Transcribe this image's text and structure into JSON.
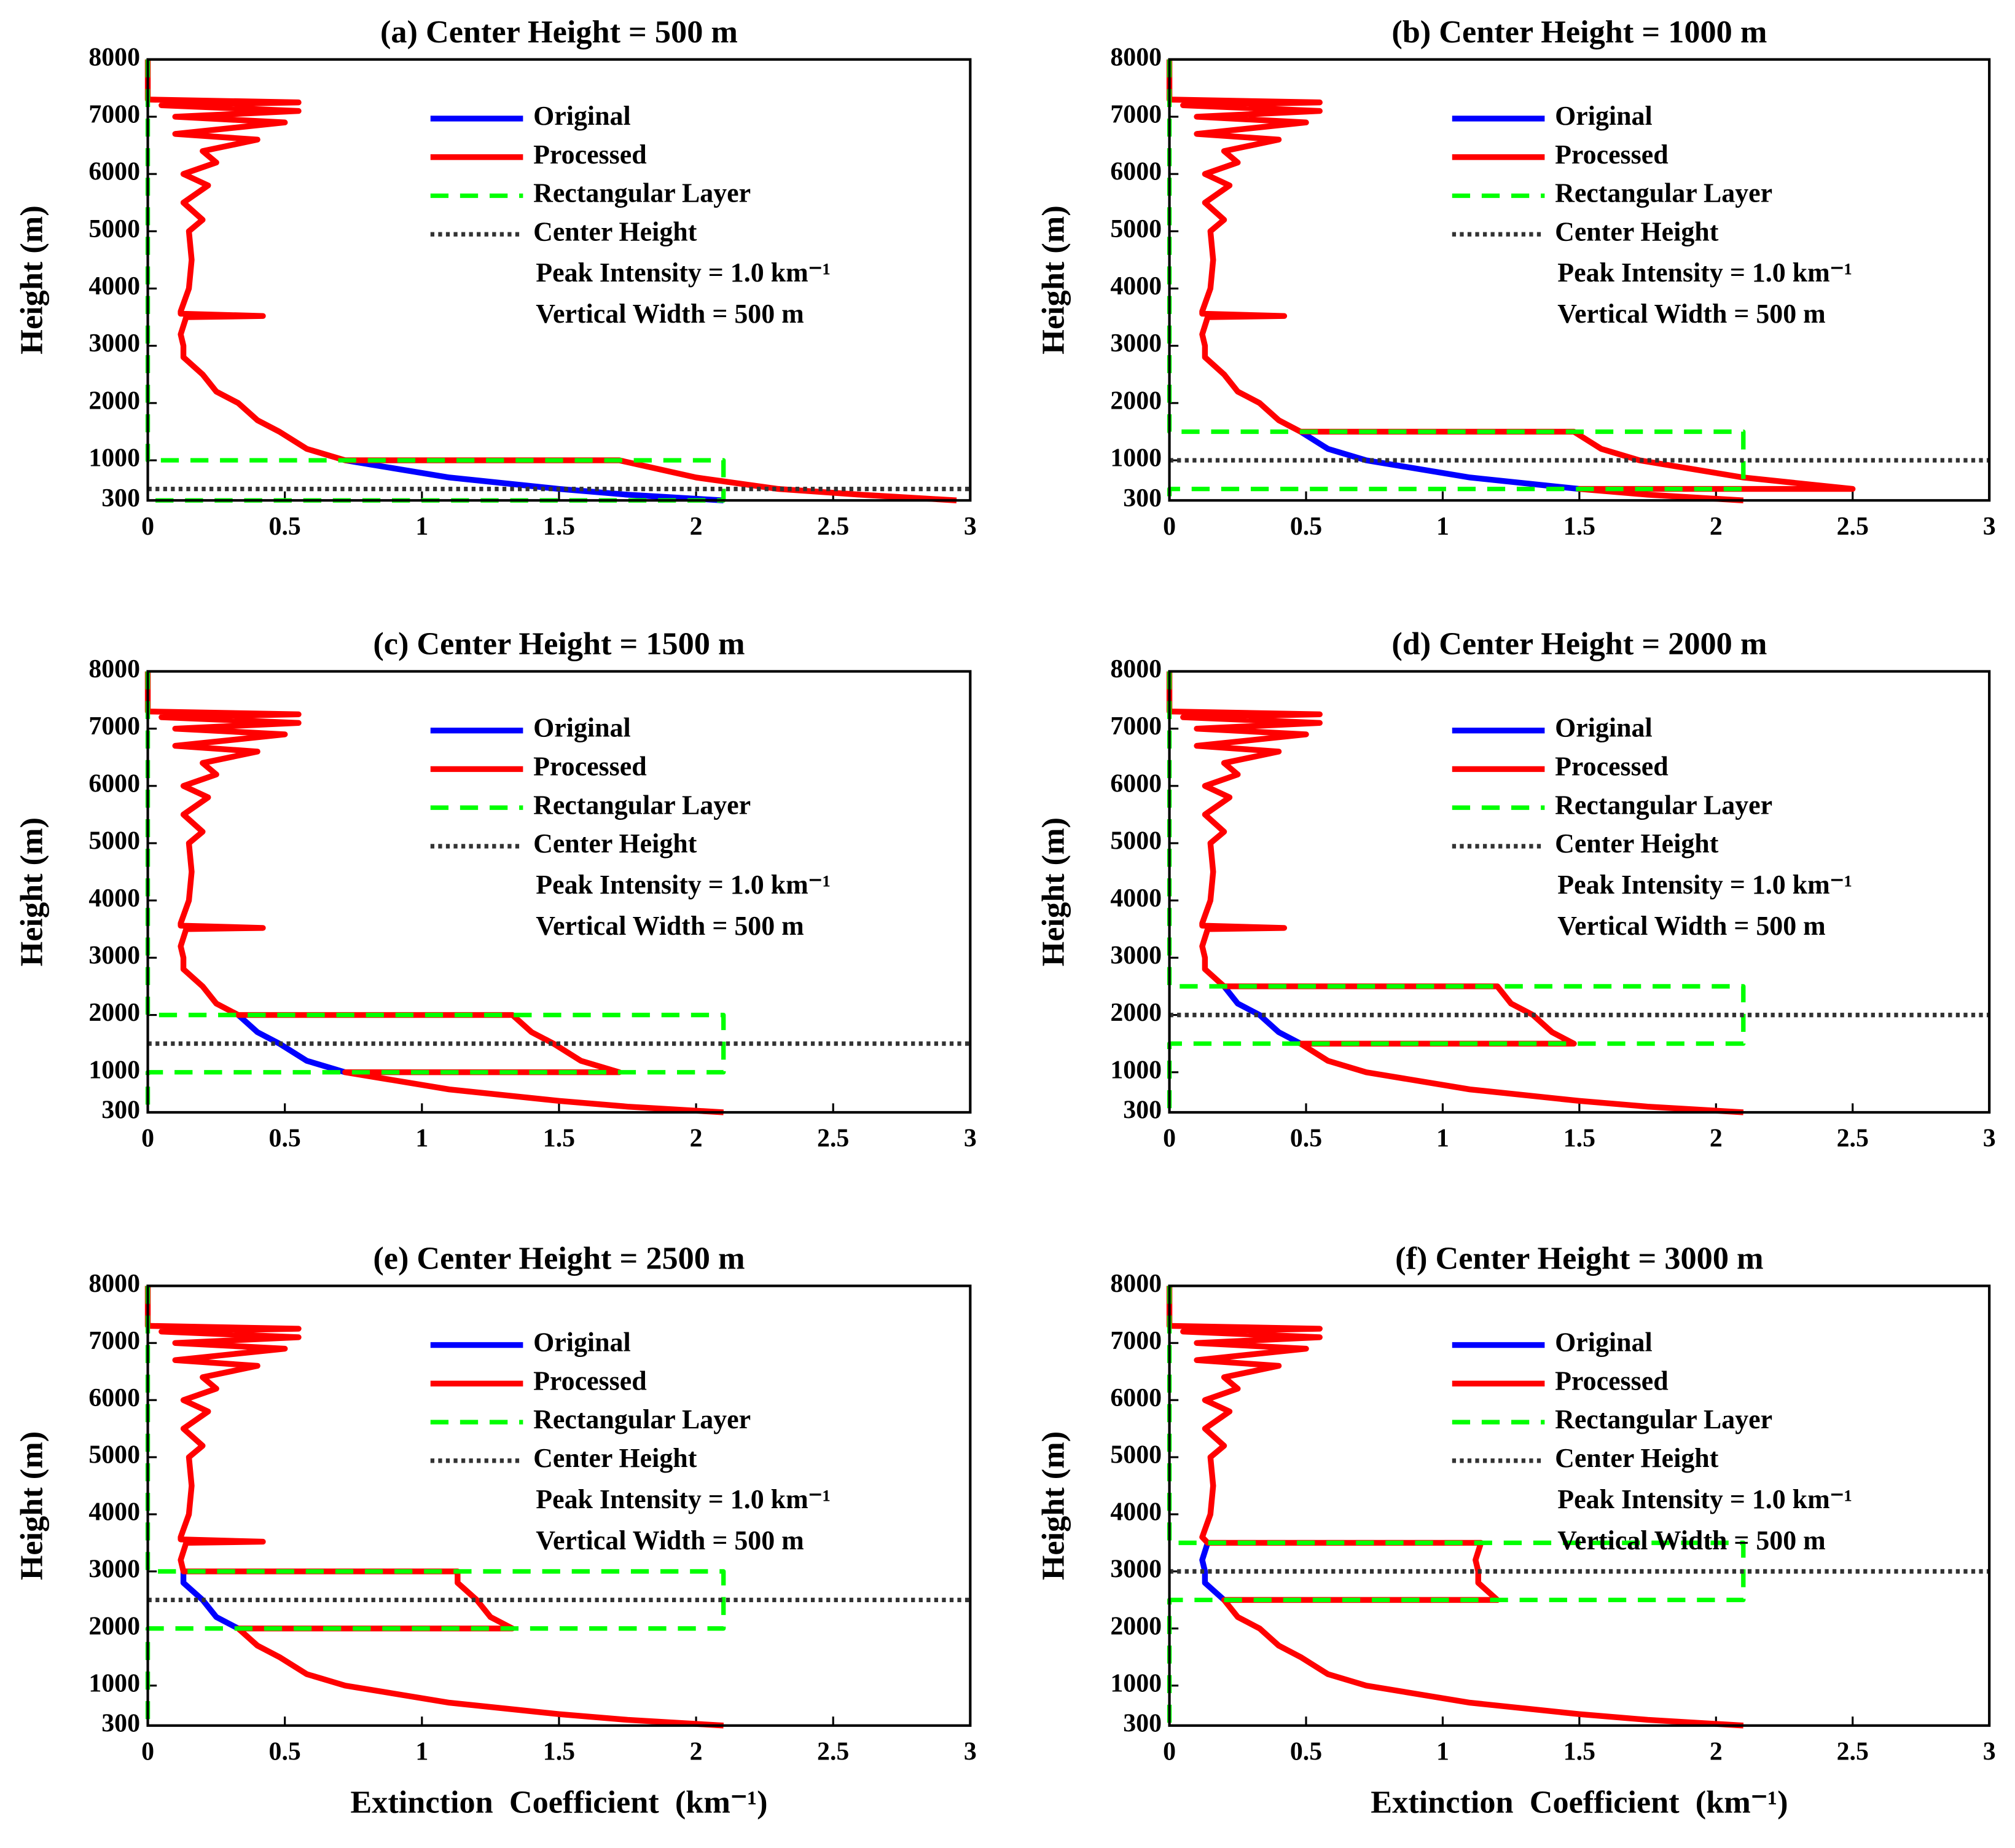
{
  "chart_data": [
    {
      "type": "line",
      "title": "(a) Center Height = 500 m",
      "ylabel": "Height (m)",
      "xlim": [
        0,
        3
      ],
      "ylim": [
        300,
        8000
      ],
      "xticks": [
        0,
        0.5,
        1,
        1.5,
        2,
        2.5,
        3
      ],
      "yticks": [
        300,
        1000,
        2000,
        3000,
        4000,
        5000,
        6000,
        7000,
        8000
      ],
      "legend": "upper right",
      "annotations": [
        "Peak Intensity = 1.0 km⁻¹",
        "Vertical Width = 500 m"
      ],
      "series": [
        {
          "name": "Original",
          "color": "#0000ff",
          "linestyle": "solid",
          "x": [
            2.1,
            1.75,
            1.5,
            1.1,
            0.72
          ],
          "y": [
            300,
            400,
            500,
            700,
            1000
          ]
        },
        {
          "name": "Processed",
          "color": "#ff0000",
          "linestyle": "solid",
          "x": [
            2.95,
            2.6,
            2.3,
            2.0,
            1.72,
            0.72,
            0.58,
            0.48,
            0.4,
            0.33,
            0.25,
            0.2,
            0.13,
            0.13,
            0.12,
            0.14,
            0.42,
            0.12,
            0.12,
            0.15,
            0.16,
            0.15,
            0.2,
            0.13,
            0.22,
            0.13,
            0.25,
            0.2,
            0.4,
            0.1,
            0.5,
            0.1,
            0.55,
            0.05,
            0.55,
            0.0,
            0.0
          ],
          "y": [
            300,
            400,
            500,
            700,
            1000,
            1000,
            1200,
            1500,
            1700,
            2000,
            2200,
            2500,
            2800,
            3000,
            3200,
            3500,
            3520,
            3560,
            3600,
            4000,
            4500,
            5000,
            5200,
            5500,
            5800,
            6000,
            6200,
            6400,
            6600,
            6700,
            6900,
            7000,
            7100,
            7200,
            7250,
            7300,
            8000
          ]
        },
        {
          "name": "Rectangular Layer",
          "color": "#00ff00",
          "linestyle": "dashed",
          "x": [
            0,
            0,
            2.1,
            2.1,
            0
          ],
          "y": [
            8000,
            1000,
            1000,
            300,
            300
          ]
        },
        {
          "name": "Center Height",
          "color": "#333333",
          "linestyle": "dotted",
          "x": [
            0,
            3
          ],
          "y": [
            500,
            500
          ]
        }
      ]
    },
    {
      "type": "line",
      "title": "(b) Center Height = 1000 m",
      "ylabel": "Height (m)",
      "xlim": [
        0,
        3
      ],
      "ylim": [
        300,
        8000
      ],
      "xticks": [
        0,
        0.5,
        1,
        1.5,
        2,
        2.5,
        3
      ],
      "yticks": [
        300,
        1000,
        2000,
        3000,
        4000,
        5000,
        6000,
        7000,
        8000
      ],
      "legend": "upper right",
      "annotations": [
        "Peak Intensity = 1.0 km⁻¹",
        "Vertical Width = 500 m"
      ],
      "series": [
        {
          "name": "Original",
          "color": "#0000ff",
          "linestyle": "solid",
          "x": [
            1.5,
            1.1,
            0.72,
            0.58,
            0.48
          ],
          "y": [
            500,
            700,
            1000,
            1200,
            1500
          ]
        },
        {
          "name": "Processed",
          "color": "#ff0000",
          "linestyle": "solid",
          "x": [
            2.1,
            1.75,
            1.5,
            2.5,
            2.1,
            1.72,
            1.58,
            1.48,
            0.48,
            0.4,
            0.33,
            0.25,
            0.2,
            0.13,
            0.13,
            0.12,
            0.14,
            0.42,
            0.12,
            0.12,
            0.15,
            0.16,
            0.15,
            0.2,
            0.13,
            0.22,
            0.13,
            0.25,
            0.2,
            0.4,
            0.1,
            0.5,
            0.1,
            0.55,
            0.05,
            0.55,
            0.0,
            0.0
          ],
          "y": [
            300,
            400,
            500,
            500,
            700,
            1000,
            1200,
            1500,
            1500,
            1700,
            2000,
            2200,
            2500,
            2800,
            3000,
            3200,
            3500,
            3520,
            3560,
            3600,
            4000,
            4500,
            5000,
            5200,
            5500,
            5800,
            6000,
            6200,
            6400,
            6600,
            6700,
            6900,
            7000,
            7100,
            7200,
            7250,
            7300,
            8000
          ]
        },
        {
          "name": "Rectangular Layer",
          "color": "#00ff00",
          "linestyle": "dashed",
          "x": [
            0,
            0,
            2.1,
            2.1,
            0,
            0
          ],
          "y": [
            8000,
            1500,
            1500,
            500,
            500,
            300
          ]
        },
        {
          "name": "Center Height",
          "color": "#333333",
          "linestyle": "dotted",
          "x": [
            0,
            3
          ],
          "y": [
            1000,
            1000
          ]
        }
      ]
    },
    {
      "type": "line",
      "title": "(c) Center Height = 1500 m",
      "ylabel": "Height (m)",
      "xlim": [
        0,
        3
      ],
      "ylim": [
        300,
        8000
      ],
      "xticks": [
        0,
        0.5,
        1,
        1.5,
        2,
        2.5,
        3
      ],
      "yticks": [
        300,
        1000,
        2000,
        3000,
        4000,
        5000,
        6000,
        7000,
        8000
      ],
      "legend": "upper right",
      "annotations": [
        "Peak Intensity = 1.0 km⁻¹",
        "Vertical Width = 500 m"
      ],
      "series": [
        {
          "name": "Original",
          "color": "#0000ff",
          "linestyle": "solid",
          "x": [
            0.72,
            0.58,
            0.48,
            0.4,
            0.33
          ],
          "y": [
            1000,
            1200,
            1500,
            1700,
            2000
          ]
        },
        {
          "name": "Processed",
          "color": "#ff0000",
          "linestyle": "solid",
          "x": [
            2.1,
            1.75,
            1.5,
            1.1,
            0.72,
            1.72,
            1.58,
            1.48,
            1.4,
            1.33,
            0.33,
            0.25,
            0.2,
            0.13,
            0.13,
            0.12,
            0.14,
            0.42,
            0.12,
            0.12,
            0.15,
            0.16,
            0.15,
            0.2,
            0.13,
            0.22,
            0.13,
            0.25,
            0.2,
            0.4,
            0.1,
            0.5,
            0.1,
            0.55,
            0.05,
            0.55,
            0.0,
            0.0
          ],
          "y": [
            300,
            400,
            500,
            700,
            1000,
            1000,
            1200,
            1500,
            1700,
            2000,
            2000,
            2200,
            2500,
            2800,
            3000,
            3200,
            3500,
            3520,
            3560,
            3600,
            4000,
            4500,
            5000,
            5200,
            5500,
            5800,
            6000,
            6200,
            6400,
            6600,
            6700,
            6900,
            7000,
            7100,
            7200,
            7250,
            7300,
            8000
          ]
        },
        {
          "name": "Rectangular Layer",
          "color": "#00ff00",
          "linestyle": "dashed",
          "x": [
            0,
            0,
            2.1,
            2.1,
            0,
            0
          ],
          "y": [
            8000,
            2000,
            2000,
            1000,
            1000,
            300
          ]
        },
        {
          "name": "Center Height",
          "color": "#333333",
          "linestyle": "dotted",
          "x": [
            0,
            3
          ],
          "y": [
            1500,
            1500
          ]
        }
      ]
    },
    {
      "type": "line",
      "title": "(d) Center Height = 2000 m",
      "ylabel": "Height (m)",
      "xlim": [
        0,
        3
      ],
      "ylim": [
        300,
        8000
      ],
      "xticks": [
        0,
        0.5,
        1,
        1.5,
        2,
        2.5,
        3
      ],
      "yticks": [
        300,
        1000,
        2000,
        3000,
        4000,
        5000,
        6000,
        7000,
        8000
      ],
      "legend": "upper right",
      "annotations": [
        "Peak Intensity = 1.0 km⁻¹",
        "Vertical Width = 500 m"
      ],
      "series": [
        {
          "name": "Original",
          "color": "#0000ff",
          "linestyle": "solid",
          "x": [
            0.48,
            0.4,
            0.33,
            0.25,
            0.2
          ],
          "y": [
            1500,
            1700,
            2000,
            2200,
            2500
          ]
        },
        {
          "name": "Processed",
          "color": "#ff0000",
          "linestyle": "solid",
          "x": [
            2.1,
            1.75,
            1.5,
            1.1,
            0.72,
            0.58,
            0.48,
            1.48,
            1.4,
            1.33,
            1.25,
            1.2,
            0.2,
            0.13,
            0.13,
            0.12,
            0.14,
            0.42,
            0.12,
            0.12,
            0.15,
            0.16,
            0.15,
            0.2,
            0.13,
            0.22,
            0.13,
            0.25,
            0.2,
            0.4,
            0.1,
            0.5,
            0.1,
            0.55,
            0.05,
            0.55,
            0.0,
            0.0
          ],
          "y": [
            300,
            400,
            500,
            700,
            1000,
            1200,
            1500,
            1500,
            1700,
            2000,
            2200,
            2500,
            2500,
            2800,
            3000,
            3200,
            3500,
            3520,
            3560,
            3600,
            4000,
            4500,
            5000,
            5200,
            5500,
            5800,
            6000,
            6200,
            6400,
            6600,
            6700,
            6900,
            7000,
            7100,
            7200,
            7250,
            7300,
            8000
          ]
        },
        {
          "name": "Rectangular Layer",
          "color": "#00ff00",
          "linestyle": "dashed",
          "x": [
            0,
            0,
            2.1,
            2.1,
            0,
            0
          ],
          "y": [
            8000,
            2500,
            2500,
            1500,
            1500,
            300
          ]
        },
        {
          "name": "Center Height",
          "color": "#333333",
          "linestyle": "dotted",
          "x": [
            0,
            3
          ],
          "y": [
            2000,
            2000
          ]
        }
      ]
    },
    {
      "type": "line",
      "title": "(e) Center Height = 2500 m",
      "ylabel": "Height (m)",
      "xlabel": "Extinction  Coefficient  (km⁻¹)",
      "xlim": [
        0,
        3
      ],
      "ylim": [
        300,
        8000
      ],
      "xticks": [
        0,
        0.5,
        1,
        1.5,
        2,
        2.5,
        3
      ],
      "yticks": [
        300,
        1000,
        2000,
        3000,
        4000,
        5000,
        6000,
        7000,
        8000
      ],
      "legend": "upper right",
      "annotations": [
        "Peak Intensity = 1.0 km⁻¹",
        "Vertical Width = 500 m"
      ],
      "series": [
        {
          "name": "Original",
          "color": "#0000ff",
          "linestyle": "solid",
          "x": [
            0.33,
            0.25,
            0.2,
            0.13,
            0.13
          ],
          "y": [
            2000,
            2200,
            2500,
            2800,
            3000
          ]
        },
        {
          "name": "Processed",
          "color": "#ff0000",
          "linestyle": "solid",
          "x": [
            2.1,
            1.75,
            1.5,
            1.1,
            0.72,
            0.58,
            0.48,
            0.4,
            0.33,
            1.33,
            1.25,
            1.2,
            1.13,
            1.13,
            0.13,
            0.12,
            0.14,
            0.42,
            0.12,
            0.12,
            0.15,
            0.16,
            0.15,
            0.2,
            0.13,
            0.22,
            0.13,
            0.25,
            0.2,
            0.4,
            0.1,
            0.5,
            0.1,
            0.55,
            0.05,
            0.55,
            0.0,
            0.0
          ],
          "y": [
            300,
            400,
            500,
            700,
            1000,
            1200,
            1500,
            1700,
            2000,
            2000,
            2200,
            2500,
            2800,
            3000,
            3000,
            3200,
            3500,
            3520,
            3560,
            3600,
            4000,
            4500,
            5000,
            5200,
            5500,
            5800,
            6000,
            6200,
            6400,
            6600,
            6700,
            6900,
            7000,
            7100,
            7200,
            7250,
            7300,
            8000
          ]
        },
        {
          "name": "Rectangular Layer",
          "color": "#00ff00",
          "linestyle": "dashed",
          "x": [
            0,
            0,
            2.1,
            2.1,
            0,
            0
          ],
          "y": [
            8000,
            3000,
            3000,
            2000,
            2000,
            300
          ]
        },
        {
          "name": "Center Height",
          "color": "#333333",
          "linestyle": "dotted",
          "x": [
            0,
            3
          ],
          "y": [
            2500,
            2500
          ]
        }
      ]
    },
    {
      "type": "line",
      "title": "(f) Center Height = 3000 m",
      "ylabel": "Height (m)",
      "xlabel": "Extinction  Coefficient  (km⁻¹)",
      "xlim": [
        0,
        3
      ],
      "ylim": [
        300,
        8000
      ],
      "xticks": [
        0,
        0.5,
        1,
        1.5,
        2,
        2.5,
        3
      ],
      "yticks": [
        300,
        1000,
        2000,
        3000,
        4000,
        5000,
        6000,
        7000,
        8000
      ],
      "legend": "upper right",
      "annotations": [
        "Peak Intensity = 1.0 km⁻¹",
        "Vertical Width = 500 m"
      ],
      "series": [
        {
          "name": "Original",
          "color": "#0000ff",
          "linestyle": "solid",
          "x": [
            0.2,
            0.13,
            0.13,
            0.12,
            0.14
          ],
          "y": [
            2500,
            2800,
            3000,
            3200,
            3500
          ]
        },
        {
          "name": "Processed",
          "color": "#ff0000",
          "linestyle": "solid",
          "x": [
            2.1,
            1.75,
            1.5,
            1.1,
            0.72,
            0.58,
            0.48,
            0.4,
            0.33,
            0.25,
            0.2,
            1.2,
            1.13,
            1.13,
            1.12,
            1.14,
            0.14,
            0.12,
            0.15,
            0.16,
            0.15,
            0.2,
            0.13,
            0.22,
            0.13,
            0.25,
            0.2,
            0.4,
            0.1,
            0.5,
            0.1,
            0.55,
            0.05,
            0.55,
            0.0,
            0.0
          ],
          "y": [
            300,
            400,
            500,
            700,
            1000,
            1200,
            1500,
            1700,
            2000,
            2200,
            2500,
            2500,
            2800,
            3000,
            3200,
            3500,
            3500,
            3600,
            4000,
            4500,
            5000,
            5200,
            5500,
            5800,
            6000,
            6200,
            6400,
            6600,
            6700,
            6900,
            7000,
            7100,
            7200,
            7250,
            7300,
            8000
          ]
        },
        {
          "name": "Rectangular Layer",
          "color": "#00ff00",
          "linestyle": "dashed",
          "x": [
            0,
            0,
            2.1,
            2.1,
            0,
            0
          ],
          "y": [
            8000,
            3500,
            3500,
            2500,
            2500,
            300
          ]
        },
        {
          "name": "Center Height",
          "color": "#333333",
          "linestyle": "dotted",
          "x": [
            0,
            3
          ],
          "y": [
            3000,
            3000
          ]
        }
      ]
    }
  ]
}
